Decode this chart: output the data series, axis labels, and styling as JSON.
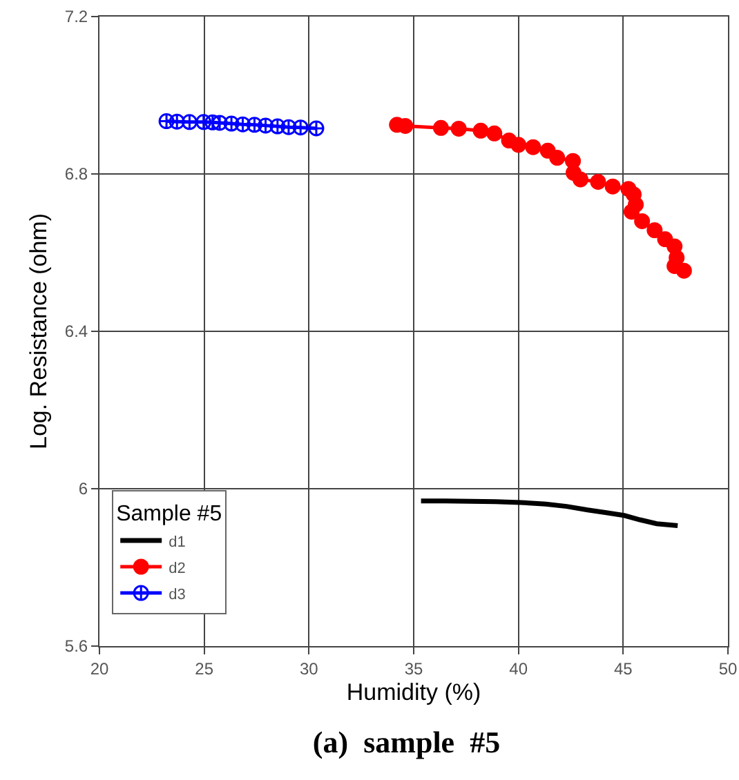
{
  "chart_data": {
    "type": "line",
    "title": "(a)  sample  #5",
    "xlabel": "Humidity (%)",
    "ylabel": "Log. Resistance (ohm)",
    "legend_title": "Sample #5",
    "xlim": [
      20,
      50
    ],
    "xticks": [
      20,
      25,
      30,
      35,
      40,
      45,
      50
    ],
    "ylim": [
      5.6,
      7.2
    ],
    "yticks": [
      5.6,
      6,
      6.4,
      6.8,
      7.2
    ],
    "grid": true,
    "legend": "bottom left",
    "series": [
      {
        "name": "d1",
        "color": "#000000",
        "marker": "none",
        "x": [
          35.35,
          36.5,
          37.7,
          38.9,
          40.1,
          41.3,
          42.3,
          43.3,
          44.2,
          45.05,
          45.8,
          46.6,
          47.6
        ],
        "values": [
          5.969,
          5.969,
          5.968,
          5.967,
          5.965,
          5.961,
          5.955,
          5.946,
          5.939,
          5.932,
          5.921,
          5.911,
          5.906
        ]
      },
      {
        "name": "d2",
        "color": "#ff0000",
        "marker": "circle",
        "x": [
          34.2,
          34.6,
          36.3,
          37.15,
          38.2,
          38.85,
          39.55,
          40.0,
          40.7,
          41.4,
          41.85,
          42.6,
          42.63,
          42.96,
          43.8,
          44.5,
          45.25,
          45.5,
          45.6,
          45.4,
          45.9,
          46.5,
          47.0,
          47.45,
          47.55,
          47.45,
          47.9
        ],
        "values": [
          6.925,
          6.922,
          6.917,
          6.915,
          6.91,
          6.903,
          6.885,
          6.874,
          6.868,
          6.859,
          6.841,
          6.833,
          6.803,
          6.786,
          6.78,
          6.768,
          6.762,
          6.748,
          6.722,
          6.704,
          6.68,
          6.657,
          6.634,
          6.616,
          6.587,
          6.566,
          6.554
        ]
      },
      {
        "name": "d3",
        "color": "#0000ff",
        "marker": "cross",
        "x": [
          23.2,
          23.7,
          24.3,
          24.97,
          25.4,
          25.74,
          26.3,
          26.84,
          27.4,
          27.93,
          28.5,
          29.03,
          29.6,
          30.35
        ],
        "values": [
          6.934,
          6.933,
          6.932,
          6.932,
          6.931,
          6.93,
          6.928,
          6.926,
          6.925,
          6.923,
          6.921,
          6.919,
          6.918,
          6.916
        ]
      }
    ]
  }
}
